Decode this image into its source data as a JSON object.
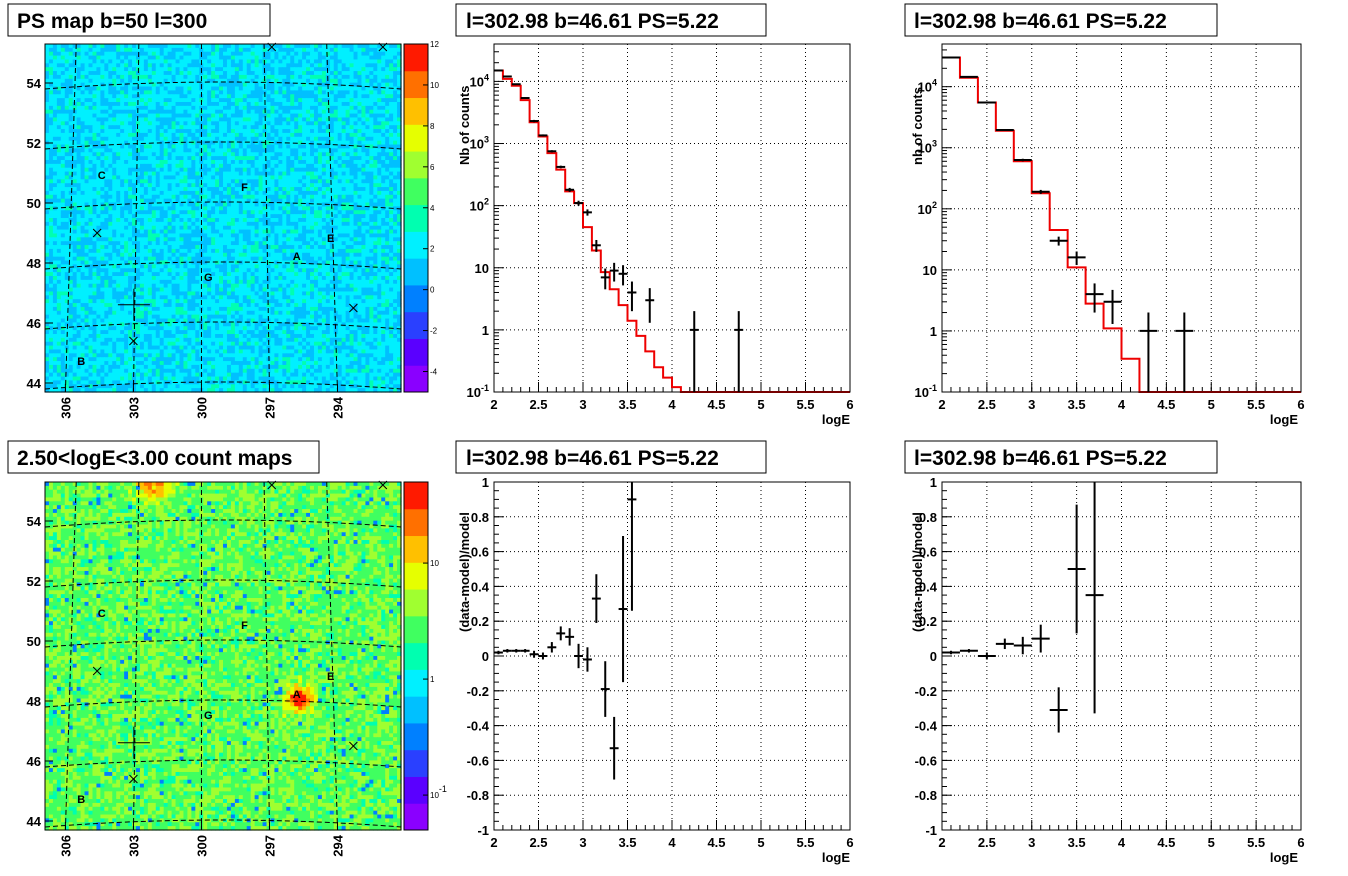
{
  "colors": {
    "model_line": "#ee0000",
    "data_marker": "#000000",
    "grid": "#000000",
    "palette_low": "#8a00ff",
    "palette_mid": "#00f0ff",
    "palette_high": "#ff1a00"
  },
  "chart_data": [
    {
      "type": "heatmap",
      "title": "PS map b=50 l=300",
      "colorbar": {
        "scale": "linear",
        "range": [
          -5,
          12
        ],
        "ticks": [
          "12",
          "10",
          "8",
          "6",
          "4",
          "2",
          "0",
          "-2",
          "-4"
        ]
      },
      "x_ticks": [
        "306",
        "303",
        "300",
        "297",
        "294"
      ],
      "y_ticks": [
        "54",
        "52",
        "50",
        "48",
        "46",
        "44"
      ],
      "source_labels": [
        {
          "label": "A",
          "l": 295.8,
          "b": 48.1
        },
        {
          "label": "B",
          "l": 305.3,
          "b": 44.6
        },
        {
          "label": "C",
          "l": 304.4,
          "b": 50.8
        },
        {
          "label": "E",
          "l": 294.3,
          "b": 48.7
        },
        {
          "label": "F",
          "l": 298.1,
          "b": 50.4
        },
        {
          "label": "G",
          "l": 299.7,
          "b": 47.4
        }
      ],
      "grid": true
    },
    {
      "type": "line",
      "title": "l=302.98 b=46.61 PS=5.22",
      "xlabel": "logE",
      "ylabel": "Nb of counts",
      "xlim": [
        2,
        6
      ],
      "ylim": [
        0.1,
        40000
      ],
      "yscale": "log",
      "x_ticks": [
        "2",
        "2.5",
        "3",
        "3.5",
        "4",
        "4.5",
        "5",
        "5.5",
        "6"
      ],
      "y_ticks": [
        "10^{-1}",
        "1",
        "10",
        "10^{2}",
        "10^{3}",
        "10^{4}"
      ],
      "grid": true,
      "model_step": {
        "edges": [
          2.0,
          2.1,
          2.2,
          2.3,
          2.4,
          2.5,
          2.6,
          2.7,
          2.8,
          2.9,
          3.0,
          3.1,
          3.2,
          3.3,
          3.4,
          3.5,
          3.6,
          3.7,
          3.8,
          3.9,
          4.0,
          4.1,
          4.2,
          4.3,
          6.0
        ],
        "values": [
          15000,
          11000,
          8500,
          5000,
          2200,
          1300,
          700,
          380,
          170,
          110,
          45,
          19,
          8.5,
          4.5,
          2.5,
          1.4,
          0.8,
          0.45,
          0.25,
          0.17,
          0.12,
          0.1,
          0.1,
          0.1
        ]
      },
      "data_points": [
        {
          "x": 2.05,
          "y": 15000,
          "ylo": 14700,
          "yhi": 15300
        },
        {
          "x": 2.15,
          "y": 12000,
          "ylo": 11700,
          "yhi": 12300
        },
        {
          "x": 2.25,
          "y": 9000,
          "ylo": 8800,
          "yhi": 9200
        },
        {
          "x": 2.35,
          "y": 5400,
          "ylo": 5250,
          "yhi": 5550
        },
        {
          "x": 2.45,
          "y": 2300,
          "ylo": 2200,
          "yhi": 2400
        },
        {
          "x": 2.55,
          "y": 1350,
          "ylo": 1300,
          "yhi": 1400
        },
        {
          "x": 2.65,
          "y": 750,
          "ylo": 720,
          "yhi": 780
        },
        {
          "x": 2.75,
          "y": 420,
          "ylo": 400,
          "yhi": 440
        },
        {
          "x": 2.85,
          "y": 180,
          "ylo": 167,
          "yhi": 193
        },
        {
          "x": 2.95,
          "y": 110,
          "ylo": 100,
          "yhi": 120
        },
        {
          "x": 3.05,
          "y": 78,
          "ylo": 69,
          "yhi": 87
        },
        {
          "x": 3.15,
          "y": 23,
          "ylo": 18,
          "yhi": 28
        },
        {
          "x": 3.25,
          "y": 7,
          "ylo": 4.5,
          "yhi": 9.7
        },
        {
          "x": 3.35,
          "y": 9,
          "ylo": 6,
          "yhi": 12
        },
        {
          "x": 3.45,
          "y": 8,
          "ylo": 5.2,
          "yhi": 11
        },
        {
          "x": 3.55,
          "y": 4,
          "ylo": 2,
          "yhi": 6
        },
        {
          "x": 3.75,
          "y": 3,
          "ylo": 1.3,
          "yhi": 4.7
        },
        {
          "x": 4.25,
          "y": 1,
          "ylo": 0.1,
          "yhi": 2
        },
        {
          "x": 4.75,
          "y": 1,
          "ylo": 0.1,
          "yhi": 2
        }
      ]
    },
    {
      "type": "line",
      "title": "l=302.98 b=46.61 PS=5.22",
      "xlabel": "logE",
      "ylabel": "nb of counts",
      "xlim": [
        2,
        6
      ],
      "ylim": [
        0.1,
        50000
      ],
      "yscale": "log",
      "x_ticks": [
        "2",
        "2.5",
        "3",
        "3.5",
        "4",
        "4.5",
        "5",
        "5.5",
        "6"
      ],
      "y_ticks": [
        "10^{-1}",
        "1",
        "10",
        "10^{2}",
        "10^{3}",
        "10^{4}"
      ],
      "grid": true,
      "model_step": {
        "edges": [
          2.0,
          2.2,
          2.4,
          2.6,
          2.8,
          3.0,
          3.2,
          3.4,
          3.6,
          3.8,
          4.0,
          4.2,
          6.0
        ],
        "values": [
          30000,
          14000,
          5500,
          1900,
          600,
          180,
          45,
          11,
          2.8,
          1.1,
          0.35,
          0.1
        ]
      },
      "data_points": [
        {
          "x": 2.1,
          "y": 30000,
          "ylo": 29600,
          "yhi": 30400
        },
        {
          "x": 2.3,
          "y": 14500,
          "ylo": 14200,
          "yhi": 14800
        },
        {
          "x": 2.5,
          "y": 5500,
          "ylo": 5350,
          "yhi": 5650
        },
        {
          "x": 2.7,
          "y": 1950,
          "ylo": 1900,
          "yhi": 2000
        },
        {
          "x": 2.9,
          "y": 630,
          "ylo": 600,
          "yhi": 660
        },
        {
          "x": 3.1,
          "y": 190,
          "ylo": 176,
          "yhi": 204
        },
        {
          "x": 3.3,
          "y": 30,
          "ylo": 25,
          "yhi": 35
        },
        {
          "x": 3.5,
          "y": 16,
          "ylo": 12,
          "yhi": 20
        },
        {
          "x": 3.7,
          "y": 4,
          "ylo": 2,
          "yhi": 6
        },
        {
          "x": 3.9,
          "y": 3,
          "ylo": 1.3,
          "yhi": 4.7
        },
        {
          "x": 4.3,
          "y": 1,
          "ylo": 0.1,
          "yhi": 2
        },
        {
          "x": 4.7,
          "y": 1,
          "ylo": 0.1,
          "yhi": 2
        }
      ]
    },
    {
      "type": "heatmap",
      "title": "2.50<logE<3.00 count maps",
      "colorbar": {
        "scale": "log",
        "range": [
          0.05,
          50
        ],
        "ticks": [
          "10",
          "1",
          "10^{-1}"
        ]
      },
      "x_ticks": [
        "306",
        "303",
        "300",
        "297",
        "294"
      ],
      "y_ticks": [
        "54",
        "52",
        "50",
        "48",
        "46",
        "44"
      ],
      "source_labels": [
        {
          "label": "A",
          "l": 295.8,
          "b": 48.1
        },
        {
          "label": "B",
          "l": 305.3,
          "b": 44.6
        },
        {
          "label": "C",
          "l": 304.4,
          "b": 50.8
        },
        {
          "label": "E",
          "l": 294.3,
          "b": 48.7
        },
        {
          "label": "F",
          "l": 298.1,
          "b": 50.4
        },
        {
          "label": "G",
          "l": 299.7,
          "b": 47.4
        }
      ],
      "grid": true
    },
    {
      "type": "scatter",
      "title": "l=302.98 b=46.61 PS=5.22",
      "xlabel": "logE",
      "ylabel": "(data-model)/model",
      "xlim": [
        2,
        6
      ],
      "ylim": [
        -1,
        1
      ],
      "x_ticks": [
        "2",
        "2.5",
        "3",
        "3.5",
        "4",
        "4.5",
        "5",
        "5.5",
        "6"
      ],
      "y_ticks": [
        "1",
        "0.8",
        "0.6",
        "0.4",
        "0.2",
        "0",
        "-0.2",
        "-0.4",
        "-0.6",
        "-0.8",
        "-1"
      ],
      "grid": true,
      "data_points": [
        {
          "x": 2.05,
          "y": 0.02,
          "ylo": 0.01,
          "yhi": 0.03
        },
        {
          "x": 2.15,
          "y": 0.03,
          "ylo": 0.02,
          "yhi": 0.04
        },
        {
          "x": 2.25,
          "y": 0.03,
          "ylo": 0.02,
          "yhi": 0.04
        },
        {
          "x": 2.35,
          "y": 0.03,
          "ylo": 0.02,
          "yhi": 0.04
        },
        {
          "x": 2.45,
          "y": 0.01,
          "ylo": -0.01,
          "yhi": 0.03
        },
        {
          "x": 2.55,
          "y": 0.0,
          "ylo": -0.02,
          "yhi": 0.02
        },
        {
          "x": 2.65,
          "y": 0.05,
          "ylo": 0.02,
          "yhi": 0.08
        },
        {
          "x": 2.75,
          "y": 0.13,
          "ylo": 0.09,
          "yhi": 0.17
        },
        {
          "x": 2.85,
          "y": 0.11,
          "ylo": 0.06,
          "yhi": 0.16
        },
        {
          "x": 2.95,
          "y": 0.0,
          "ylo": -0.07,
          "yhi": 0.07
        },
        {
          "x": 3.05,
          "y": -0.02,
          "ylo": -0.09,
          "yhi": 0.05
        },
        {
          "x": 3.15,
          "y": 0.33,
          "ylo": 0.19,
          "yhi": 0.47
        },
        {
          "x": 3.25,
          "y": -0.19,
          "ylo": -0.35,
          "yhi": -0.03
        },
        {
          "x": 3.35,
          "y": -0.53,
          "ylo": -0.71,
          "yhi": -0.35
        },
        {
          "x": 3.45,
          "y": 0.27,
          "ylo": -0.15,
          "yhi": 0.69
        },
        {
          "x": 3.55,
          "y": 0.9,
          "ylo": 0.26,
          "yhi": 1.0
        }
      ]
    },
    {
      "type": "scatter",
      "title": "l=302.98 b=46.61 PS=5.22",
      "xlabel": "logE",
      "ylabel": "(data-model)/model",
      "xlim": [
        2,
        6
      ],
      "ylim": [
        -1,
        1
      ],
      "x_ticks": [
        "2",
        "2.5",
        "3",
        "3.5",
        "4",
        "4.5",
        "5",
        "5.5",
        "6"
      ],
      "y_ticks": [
        "1",
        "0.8",
        "0.6",
        "0.4",
        "0.2",
        "0",
        "-0.2",
        "-0.4",
        "-0.6",
        "-0.8",
        "-1"
      ],
      "grid": true,
      "data_points": [
        {
          "x": 2.1,
          "y": 0.02,
          "ylo": 0.01,
          "yhi": 0.03
        },
        {
          "x": 2.3,
          "y": 0.03,
          "ylo": 0.02,
          "yhi": 0.04
        },
        {
          "x": 2.5,
          "y": 0.0,
          "ylo": -0.02,
          "yhi": 0.02
        },
        {
          "x": 2.7,
          "y": 0.07,
          "ylo": 0.04,
          "yhi": 0.1
        },
        {
          "x": 2.9,
          "y": 0.06,
          "ylo": 0.01,
          "yhi": 0.11
        },
        {
          "x": 3.1,
          "y": 0.1,
          "ylo": 0.02,
          "yhi": 0.18
        },
        {
          "x": 3.3,
          "y": -0.31,
          "ylo": -0.44,
          "yhi": -0.18
        },
        {
          "x": 3.5,
          "y": 0.5,
          "ylo": 0.13,
          "yhi": 0.87
        },
        {
          "x": 3.7,
          "y": 0.35,
          "ylo": -0.33,
          "yhi": 1.0
        }
      ]
    }
  ]
}
